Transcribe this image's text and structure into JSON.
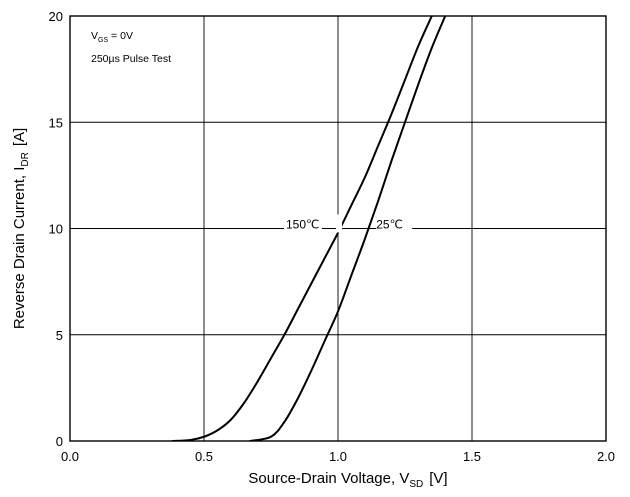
{
  "chart_data": {
    "type": "line",
    "title": "",
    "xlabel": "Source-Drain Voltage, V",
    "xlabel_sub": "SD",
    "xlabel_unit": "[V]",
    "ylabel": "Reverse Drain Current, I",
    "ylabel_sub": "DR",
    "ylabel_unit": "[A]",
    "xlim": [
      0.0,
      2.0
    ],
    "ylim": [
      0,
      20
    ],
    "x_ticks": [
      "0.0",
      "0.5",
      "1.0",
      "1.5",
      "2.0"
    ],
    "x_tick_values": [
      0.0,
      0.5,
      1.0,
      1.5,
      2.0
    ],
    "y_ticks": [
      "0",
      "5",
      "10",
      "15",
      "20"
    ],
    "y_tick_values": [
      0,
      5,
      10,
      15,
      20
    ],
    "grid": true,
    "annotation_lines": [
      "V",
      "GS",
      " = 0V",
      "250µs Pulse Test"
    ],
    "series": [
      {
        "name": "150℃",
        "x": [
          0.38,
          0.45,
          0.5,
          0.55,
          0.6,
          0.65,
          0.7,
          0.75,
          0.8,
          0.85,
          0.9,
          0.95,
          1.0,
          1.05,
          1.1,
          1.15,
          1.2,
          1.25,
          1.3,
          1.35
        ],
        "y": [
          0.0,
          0.05,
          0.2,
          0.5,
          1.0,
          1.8,
          2.8,
          3.9,
          5.0,
          6.2,
          7.4,
          8.6,
          9.8,
          11.1,
          12.4,
          13.9,
          15.4,
          17.0,
          18.6,
          20.0
        ]
      },
      {
        "name": "25℃",
        "x": [
          0.67,
          0.75,
          0.8,
          0.85,
          0.9,
          0.95,
          1.0,
          1.05,
          1.1,
          1.15,
          1.2,
          1.25,
          1.3,
          1.35,
          1.4
        ],
        "y": [
          0.0,
          0.2,
          0.9,
          2.0,
          3.3,
          4.7,
          6.1,
          7.8,
          9.5,
          11.3,
          13.2,
          15.0,
          16.8,
          18.5,
          20.0
        ]
      }
    ],
    "series_labels": [
      {
        "text": "150℃",
        "x": 1.0,
        "y": 9.8
      },
      {
        "text": "25℃",
        "x": 1.15,
        "y": 10.0
      }
    ]
  }
}
